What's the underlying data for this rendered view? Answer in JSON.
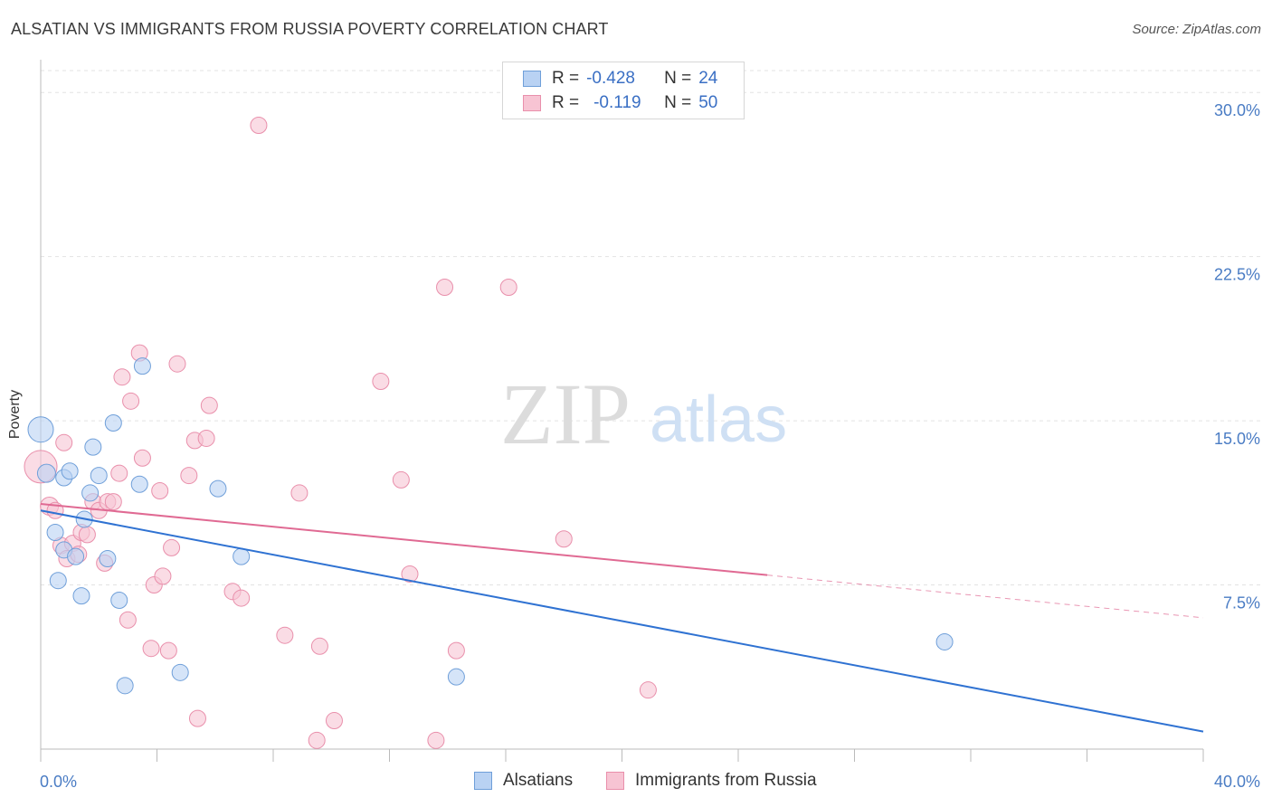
{
  "title": "ALSATIAN VS IMMIGRANTS FROM RUSSIA POVERTY CORRELATION CHART",
  "source": "Source: ZipAtlas.com",
  "watermark": {
    "zip": "ZIP",
    "atlas": "atlas"
  },
  "legend_top": {
    "rows": [
      {
        "r_label": "R =",
        "r_value": "-0.428",
        "n_label": "N =",
        "n_value": "24"
      },
      {
        "r_label": "R =",
        "r_value": "-0.119",
        "n_label": "N =",
        "n_value": "50"
      }
    ]
  },
  "legend_bottom": {
    "series1": "Alsatians",
    "series2": "Immigrants from Russia"
  },
  "colors": {
    "blue_fill": "#b9d2f3",
    "blue_stroke": "#6f9fd9",
    "blue_line": "#2f72d2",
    "pink_fill": "#f7c4d3",
    "pink_stroke": "#e98fab",
    "pink_line": "#e06a93",
    "tick_text": "#4a7cc4",
    "grid": "#e3e3e3"
  },
  "chart_data": {
    "type": "scatter",
    "title": "ALSATIAN VS IMMIGRANTS FROM RUSSIA POVERTY CORRELATION CHART",
    "xlabel": "",
    "ylabel": "Poverty",
    "xlim": [
      0,
      40
    ],
    "ylim": [
      0,
      31
    ],
    "x_tick_labels": [
      "0.0%",
      "40.0%"
    ],
    "y_ticks": [
      7.5,
      15.0,
      22.5,
      30.0
    ],
    "y_tick_labels": [
      "7.5%",
      "15.0%",
      "22.5%",
      "30.0%"
    ],
    "grid": true,
    "series": [
      {
        "name": "Alsatians",
        "R": -0.428,
        "N": 24,
        "trend": {
          "x0": 0,
          "y0": 10.9,
          "x1": 40,
          "y1": 0.8,
          "dashed_from": null
        },
        "points": [
          [
            0.0,
            14.6,
            14
          ],
          [
            0.2,
            12.6,
            10
          ],
          [
            0.5,
            9.9,
            9
          ],
          [
            0.6,
            7.7,
            9
          ],
          [
            0.8,
            9.1,
            9
          ],
          [
            0.8,
            12.4,
            9
          ],
          [
            1.0,
            12.7,
            9
          ],
          [
            1.2,
            8.8,
            9
          ],
          [
            1.4,
            7.0,
            9
          ],
          [
            1.5,
            10.5,
            9
          ],
          [
            1.7,
            11.7,
            9
          ],
          [
            1.8,
            13.8,
            9
          ],
          [
            2.0,
            12.5,
            9
          ],
          [
            2.3,
            8.7,
            9
          ],
          [
            2.5,
            14.9,
            9
          ],
          [
            2.7,
            6.8,
            9
          ],
          [
            2.9,
            2.9,
            9
          ],
          [
            3.4,
            12.1,
            9
          ],
          [
            3.5,
            17.5,
            9
          ],
          [
            4.8,
            3.5,
            9
          ],
          [
            6.1,
            11.9,
            9
          ],
          [
            6.9,
            8.8,
            9
          ],
          [
            14.3,
            3.3,
            9
          ],
          [
            31.1,
            4.9,
            9
          ]
        ]
      },
      {
        "name": "Immigrants from Russia",
        "R": -0.119,
        "N": 50,
        "trend": {
          "x0": 0,
          "y0": 11.2,
          "x1": 40,
          "y1": 6.0,
          "dashed_from": 25
        },
        "points": [
          [
            0.0,
            12.9,
            18
          ],
          [
            0.3,
            11.1,
            10
          ],
          [
            0.5,
            10.9,
            9
          ],
          [
            0.7,
            9.3,
            9
          ],
          [
            0.8,
            14.0,
            9
          ],
          [
            0.9,
            8.7,
            9
          ],
          [
            1.1,
            9.4,
            9
          ],
          [
            1.3,
            8.9,
            9
          ],
          [
            1.4,
            9.9,
            9
          ],
          [
            1.6,
            9.8,
            9
          ],
          [
            1.8,
            11.3,
            9
          ],
          [
            2.0,
            10.9,
            9
          ],
          [
            2.2,
            8.5,
            9
          ],
          [
            2.3,
            11.3,
            9
          ],
          [
            2.5,
            11.3,
            9
          ],
          [
            2.7,
            12.6,
            9
          ],
          [
            2.8,
            17.0,
            9
          ],
          [
            3.0,
            5.9,
            9
          ],
          [
            3.1,
            15.9,
            9
          ],
          [
            3.5,
            13.3,
            9
          ],
          [
            3.4,
            18.1,
            9
          ],
          [
            3.8,
            4.6,
            9
          ],
          [
            3.9,
            7.5,
            9
          ],
          [
            4.1,
            11.8,
            9
          ],
          [
            4.2,
            7.9,
            9
          ],
          [
            4.4,
            4.5,
            9
          ],
          [
            4.5,
            9.2,
            9
          ],
          [
            4.7,
            17.6,
            9
          ],
          [
            5.1,
            12.5,
            9
          ],
          [
            5.3,
            14.1,
            9
          ],
          [
            5.4,
            1.4,
            9
          ],
          [
            5.7,
            14.2,
            9
          ],
          [
            5.8,
            15.7,
            9
          ],
          [
            6.6,
            7.2,
            9
          ],
          [
            6.9,
            6.9,
            9
          ],
          [
            8.4,
            5.2,
            9
          ],
          [
            8.9,
            11.7,
            9
          ],
          [
            9.5,
            0.4,
            9
          ],
          [
            9.6,
            4.7,
            9
          ],
          [
            10.1,
            1.3,
            9
          ],
          [
            11.7,
            16.8,
            9
          ],
          [
            12.4,
            12.3,
            9
          ],
          [
            12.7,
            8.0,
            9
          ],
          [
            13.6,
            0.4,
            9
          ],
          [
            13.9,
            21.1,
            9
          ],
          [
            14.3,
            4.5,
            9
          ],
          [
            16.1,
            21.1,
            9
          ],
          [
            18.0,
            9.6,
            9
          ],
          [
            20.9,
            2.7,
            9
          ],
          [
            7.5,
            28.5,
            9
          ]
        ]
      }
    ]
  }
}
